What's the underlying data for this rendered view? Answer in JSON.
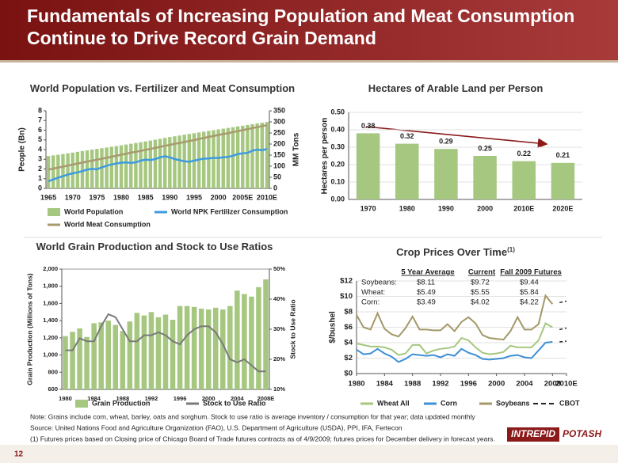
{
  "header": {
    "title_lines": [
      "Fundamentals of Increasing Population and Meat Consumption",
      "Continue to Drive Record Grain Demand"
    ]
  },
  "chart_data": [
    {
      "type": "combo",
      "title": "World Population vs. Fertilizer and Meat Consumption",
      "ylabel": "People (Bn)",
      "y2label": "MM Tons",
      "categories": [
        "1965",
        null,
        null,
        null,
        null,
        "1970",
        null,
        null,
        null,
        null,
        "1975",
        null,
        null,
        null,
        null,
        "1980",
        null,
        null,
        null,
        null,
        "1985",
        null,
        null,
        null,
        null,
        "1990",
        null,
        null,
        null,
        null,
        "1995",
        null,
        null,
        null,
        null,
        "2000",
        null,
        null,
        null,
        null,
        "2005E",
        null,
        null,
        null,
        null,
        "2010E"
      ],
      "ylim": [
        0,
        8
      ],
      "yticks": [
        0,
        1,
        2,
        3,
        4,
        5,
        6,
        7,
        8
      ],
      "y2lim": [
        0,
        350
      ],
      "y2ticks": [
        0,
        50,
        100,
        150,
        200,
        250,
        300,
        350
      ],
      "grid": false,
      "series": [
        {
          "name": "World Population",
          "type": "bar",
          "color": "#a5c77f",
          "values": [
            3.33,
            3.4,
            3.47,
            3.54,
            3.61,
            3.69,
            3.77,
            3.85,
            3.92,
            4.0,
            4.07,
            4.14,
            4.21,
            4.29,
            4.36,
            4.44,
            4.52,
            4.6,
            4.68,
            4.76,
            4.84,
            4.93,
            5.02,
            5.11,
            5.2,
            5.29,
            5.37,
            5.45,
            5.53,
            5.61,
            5.69,
            5.77,
            5.85,
            5.93,
            6.0,
            6.08,
            6.16,
            6.23,
            6.31,
            6.39,
            6.46,
            6.54,
            6.62,
            6.7,
            6.77,
            6.85
          ]
        },
        {
          "name": "World NPK Fertilizer Consumption",
          "type": "line",
          "axis": "y2",
          "color": "#3d9be0",
          "values": [
            32,
            40,
            48,
            55,
            62,
            68,
            72,
            78,
            85,
            88,
            86,
            95,
            102,
            108,
            112,
            116,
            117,
            115,
            117,
            125,
            130,
            128,
            132,
            140,
            145,
            140,
            132,
            127,
            122,
            120,
            125,
            130,
            134,
            135,
            138,
            137,
            140,
            142,
            147,
            155,
            158,
            160,
            170,
            175,
            172,
            178
          ]
        },
        {
          "name": "World Meat Consumption",
          "type": "line",
          "axis": "y2",
          "color": "#a89a6e",
          "values": [
            85,
            89,
            94,
            98,
            103,
            107,
            112,
            116,
            121,
            125,
            129,
            134,
            138,
            143,
            147,
            152,
            156,
            161,
            165,
            169,
            174,
            178,
            183,
            187,
            192,
            196,
            201,
            205,
            209,
            214,
            218,
            223,
            227,
            232,
            236,
            241,
            245,
            249,
            254,
            258,
            263,
            267,
            272,
            276,
            281,
            285
          ]
        }
      ]
    },
    {
      "type": "bar",
      "title": "Hectares of Arable Land per Person",
      "ylabel": "Hectares per person",
      "categories": [
        "1970",
        "1980",
        "1990",
        "2000",
        "2010E",
        "2020E"
      ],
      "ylim": [
        0,
        0.5
      ],
      "yticks": [
        {
          "value": 0,
          "label": "0.00"
        },
        {
          "value": 0.1,
          "label": "0.10"
        },
        {
          "value": 0.2,
          "label": "0.20"
        },
        {
          "value": 0.3,
          "label": "0.30"
        },
        {
          "value": 0.4,
          "label": "0.40"
        },
        {
          "value": 0.5,
          "label": "0.50"
        }
      ],
      "grid": true,
      "data_labels": true,
      "series": [
        {
          "type": "bar",
          "color": "#a5c77f",
          "values": [
            0.38,
            0.32,
            0.29,
            0.25,
            0.22,
            0.21
          ]
        }
      ]
    },
    {
      "type": "combo",
      "title": "World Grain Production and Stock to Use Ratios",
      "ylabel": "Grain Production (Millions of Tons)",
      "y2label": "Stock to Use Ratio",
      "categories": [
        "1980",
        null,
        null,
        null,
        "1984",
        null,
        null,
        null,
        "1988",
        null,
        null,
        null,
        "1992",
        null,
        null,
        null,
        "1996",
        null,
        null,
        null,
        "2000",
        null,
        null,
        null,
        "2004",
        null,
        null,
        null,
        "2008E"
      ],
      "ylim": [
        600,
        2000
      ],
      "yticks": [
        600,
        800,
        {
          "value": 1000,
          "label": "1,000"
        },
        {
          "value": 1200,
          "label": "1,200"
        },
        {
          "value": 1400,
          "label": "1,400"
        },
        {
          "value": 1600,
          "label": "1,600"
        },
        {
          "value": 1800,
          "label": "1,800"
        },
        {
          "value": 2000,
          "label": "2,000"
        }
      ],
      "y2lim": [
        10,
        50
      ],
      "y2ticks": [
        {
          "value": 10,
          "label": "10%"
        },
        {
          "value": 20,
          "label": "20%"
        },
        {
          "value": 30,
          "label": "30%"
        },
        {
          "value": 40,
          "label": "40%"
        },
        {
          "value": 50,
          "label": "50%"
        }
      ],
      "grid": false,
      "series": [
        {
          "name": "Grain Production",
          "type": "bar",
          "color": "#a5c77f",
          "values": [
            1220,
            1270,
            1310,
            1210,
            1370,
            1380,
            1400,
            1350,
            1280,
            1390,
            1490,
            1460,
            1500,
            1440,
            1470,
            1410,
            1570,
            1570,
            1560,
            1540,
            1530,
            1550,
            1530,
            1570,
            1750,
            1710,
            1680,
            1790,
            1880
          ]
        },
        {
          "name": "Stock to Use Ratio",
          "type": "line",
          "axis": "y2",
          "color": "#7a7a7a",
          "values": [
            23,
            23,
            27,
            26,
            26,
            31,
            35,
            34,
            30,
            26,
            26,
            28,
            28,
            29,
            28,
            26,
            25,
            28,
            30,
            31,
            31,
            29,
            25,
            20,
            19,
            20,
            18,
            16,
            16
          ]
        }
      ]
    },
    {
      "type": "line",
      "title": "Crop Prices Over Time",
      "title_note": "(1)",
      "ylabel": "$/bushel",
      "x": [
        1980,
        1981,
        1982,
        1983,
        1984,
        1985,
        1986,
        1987,
        1988,
        1989,
        1990,
        1991,
        1992,
        1993,
        1994,
        1995,
        1996,
        1997,
        1998,
        1999,
        2000,
        2001,
        2002,
        2003,
        2004,
        2005,
        2006,
        2007,
        2008
      ],
      "xlim": [
        1980,
        2010
      ],
      "xticks": [
        1980,
        1984,
        1988,
        1992,
        1996,
        2000,
        2004,
        2008,
        {
          "value": 2010,
          "label": "2010E"
        }
      ],
      "ylim": [
        0,
        12
      ],
      "yticks": [
        {
          "value": 0,
          "label": "$0"
        },
        {
          "value": 2,
          "label": "$2"
        },
        {
          "value": 4,
          "label": "$4"
        },
        {
          "value": 6,
          "label": "$6"
        },
        {
          "value": 8,
          "label": "$8"
        },
        {
          "value": 10,
          "label": "$10"
        },
        {
          "value": 12,
          "label": "$12"
        }
      ],
      "grid": true,
      "cbot": {
        "name": "CBOT",
        "color": "#222222",
        "x": [
          2009,
          2010
        ]
      },
      "series": [
        {
          "name": "Wheat All",
          "type": "line",
          "color": "#a5c77f",
          "values": [
            3.9,
            3.7,
            3.5,
            3.5,
            3.4,
            3.1,
            2.4,
            2.6,
            3.7,
            3.7,
            2.6,
            3.0,
            3.2,
            3.3,
            3.5,
            4.6,
            4.3,
            3.4,
            2.7,
            2.5,
            2.6,
            2.8,
            3.6,
            3.4,
            3.4,
            3.4,
            4.3,
            6.5,
            6.0
          ],
          "cbot_values": [
            5.7,
            5.9
          ]
        },
        {
          "name": "Corn",
          "type": "line",
          "color": "#3d8fd6",
          "values": [
            3.1,
            2.5,
            2.6,
            3.2,
            2.6,
            2.2,
            1.5,
            1.9,
            2.5,
            2.4,
            2.3,
            2.4,
            2.1,
            2.5,
            2.3,
            3.2,
            2.7,
            2.4,
            1.9,
            1.8,
            1.9,
            2.0,
            2.3,
            2.4,
            2.1,
            2.0,
            3.0,
            4.0,
            4.1
          ],
          "cbot_values": [
            4.1,
            4.2
          ]
        },
        {
          "name": "Soybeans",
          "type": "line",
          "color": "#a39868",
          "values": [
            7.6,
            6.0,
            5.7,
            7.8,
            5.8,
            5.1,
            4.8,
            5.9,
            7.4,
            5.7,
            5.7,
            5.6,
            5.6,
            6.4,
            5.5,
            6.7,
            7.3,
            6.5,
            5.0,
            4.6,
            4.5,
            4.4,
            5.5,
            7.3,
            5.7,
            5.7,
            6.4,
            10.1,
            9.0
          ],
          "cbot_values": [
            9.2,
            9.4
          ]
        }
      ],
      "table": {
        "header": [
          "5 Year Average",
          "Current",
          "Fall 2009 Futures"
        ],
        "rows": [
          [
            "Soybeans:",
            "$8.11",
            "$9.72",
            "$9.44"
          ],
          [
            "Wheat:",
            "$5.49",
            "$5.55",
            "$5.84"
          ],
          [
            "Corn:",
            "$3.49",
            "$4.02",
            "$4.22"
          ]
        ]
      }
    }
  ],
  "notes": [
    "Note: Grains include corn, wheat, barley, oats and sorghum. Stock to use ratio is average inventory / consumption for that year; data updated monthly",
    "Source: United Nations Food and Agriculture Organization (FAO), U.S. Department of Agriculture (USDA), PPI, IFA, Fertecon",
    "(1) Futures prices based on Closing price of Chicago Board of Trade futures contracts as of 4/9/2009; futures prices for December delivery in forecast years."
  ],
  "footer": {
    "page": "12",
    "logo": [
      "INTREPID",
      "POTASH"
    ]
  }
}
